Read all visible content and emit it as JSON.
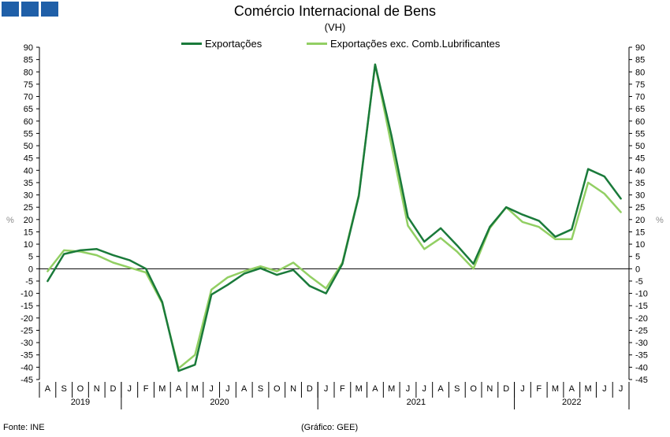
{
  "colors": {
    "logo": "#1f5fa8",
    "series1": "#1a7a3a",
    "series2": "#92cf63",
    "axis": "#000000",
    "unit": "#8c8c8c"
  },
  "logo_icon": "three-blue-squares-logo",
  "footer": {
    "source": "Fonte: INE",
    "credit": "(Gráfico: GEE)"
  },
  "chart_data": {
    "type": "line",
    "title": "Comércio Internacional de Bens",
    "subtitle": "(VH)",
    "ylabel_left": "%",
    "ylabel_right": "%",
    "ylim": [
      -45,
      90
    ],
    "ytick_step": 5,
    "grid": false,
    "legend_position": "top-center",
    "x": [
      "A",
      "S",
      "O",
      "N",
      "D",
      "J",
      "F",
      "M",
      "A",
      "M",
      "J",
      "J",
      "A",
      "S",
      "O",
      "N",
      "D",
      "J",
      "F",
      "M",
      "A",
      "M",
      "J",
      "J",
      "A",
      "S",
      "O",
      "N",
      "D",
      "J",
      "F",
      "M",
      "A",
      "M",
      "J",
      "J"
    ],
    "years": [
      {
        "label": "2019",
        "months": 5
      },
      {
        "label": "2020",
        "months": 12
      },
      {
        "label": "2021",
        "months": 12
      },
      {
        "label": "2022",
        "months": 7
      }
    ],
    "series": [
      {
        "name": "Exportações",
        "color": "#1a7a3a",
        "values": [
          -5,
          6,
          7.5,
          8,
          5.5,
          3.5,
          0,
          -13.5,
          -41.5,
          -39,
          -10.5,
          -6.5,
          -2,
          0.2,
          -2.5,
          -0.5,
          -7,
          -10,
          2,
          29.5,
          83,
          54,
          21,
          11,
          16.5,
          9.5,
          2,
          17,
          25,
          22,
          19.5,
          13,
          16,
          40.5,
          37.5,
          28.5
        ]
      },
      {
        "name": "Exportações exc. Comb.Lubrificantes",
        "color": "#92cf63",
        "values": [
          -1,
          7.5,
          7,
          5.5,
          2.5,
          0.5,
          -1.5,
          -14,
          -40.5,
          -35,
          -8.5,
          -3.5,
          -1,
          1,
          -1,
          2.5,
          -3,
          -8,
          2.5,
          30,
          83,
          50,
          17.5,
          8,
          12.5,
          7,
          0,
          16.5,
          25,
          19,
          17,
          12,
          12,
          35,
          30.5,
          23
        ]
      }
    ]
  }
}
